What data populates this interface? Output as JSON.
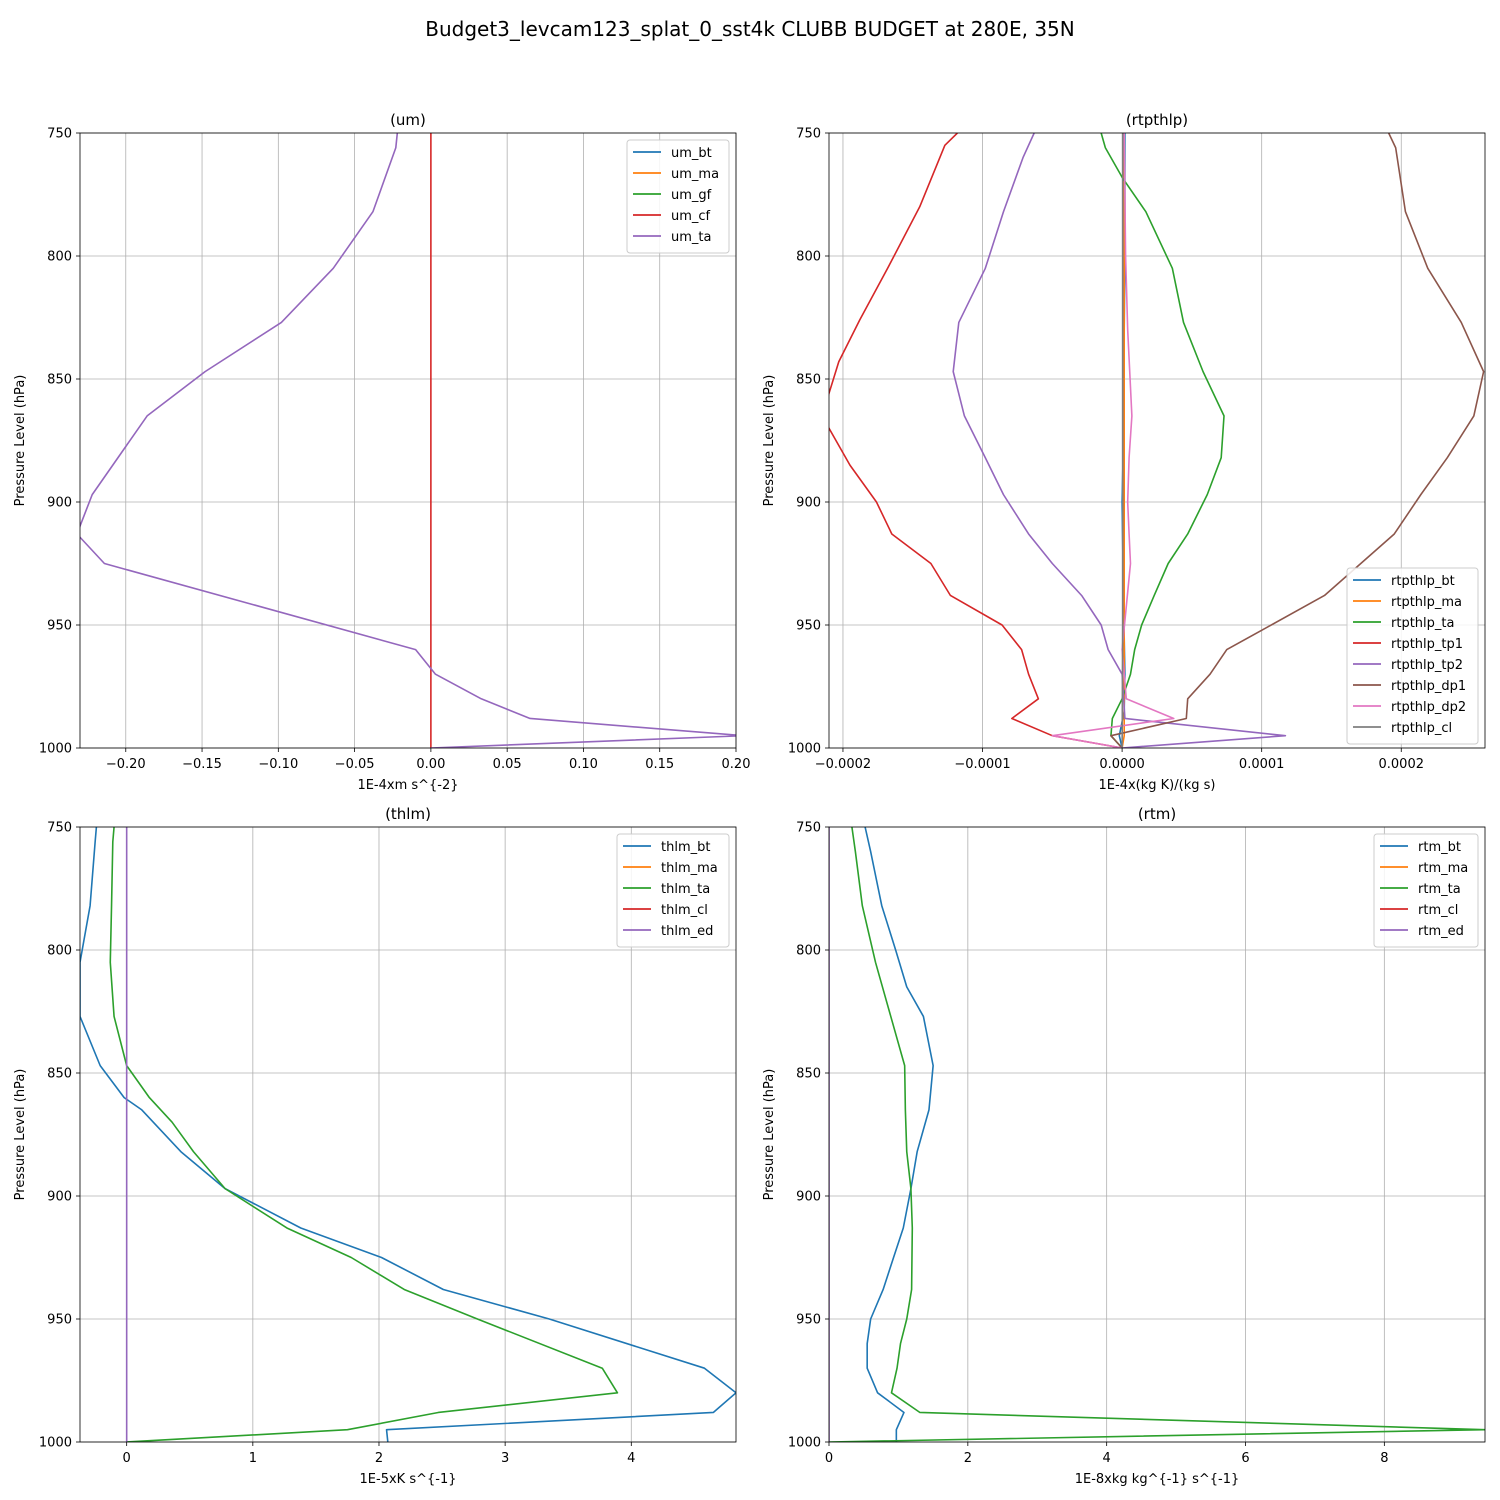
{
  "figure": {
    "title": "Budget3_levcam123_splat_0_sst4k CLUBB BUDGET at 280E, 35N"
  },
  "colors": {
    "C0": "#1f77b4",
    "C1": "#ff7f0e",
    "C2": "#2ca02c",
    "C3": "#d62728",
    "C4": "#9467bd",
    "C5": "#8c564b",
    "C6": "#e377c2",
    "C7": "#7f7f7f"
  },
  "chart_data": [
    {
      "type": "line",
      "title": "(um)",
      "xlabel": "1E-4xm s^{-2}",
      "ylabel": "Pressure Level (hPa)",
      "xlim": [
        -0.23,
        0.2
      ],
      "ylim": [
        1000,
        750
      ],
      "xticks": [
        -0.2,
        -0.15,
        -0.1,
        -0.05,
        0.0,
        0.05,
        0.1,
        0.15,
        0.2
      ],
      "xticklabels": [
        "−0.20",
        "−0.15",
        "−0.10",
        "−0.05",
        "0.00",
        "0.05",
        "0.10",
        "0.15",
        "0.20"
      ],
      "yticks": [
        750,
        800,
        850,
        900,
        950,
        1000
      ],
      "grid": true,
      "legend": "upper right",
      "series": [
        {
          "name": "um_bt",
          "color": "C0",
          "x": [],
          "y": []
        },
        {
          "name": "um_ma",
          "color": "C1",
          "x": [],
          "y": []
        },
        {
          "name": "um_gf",
          "color": "C2",
          "x": [],
          "y": []
        },
        {
          "name": "um_cf",
          "color": "C3",
          "x": [
            0,
            0
          ],
          "y": [
            750,
            1000
          ]
        },
        {
          "name": "um_ta",
          "color": "C4",
          "x": [
            -0.022,
            -0.023,
            -0.038,
            -0.064,
            -0.098,
            -0.148,
            -0.186,
            -0.222,
            -0.232,
            -0.214,
            -0.01,
            0.003,
            0.033,
            0.065,
            0.205,
            0.0
          ],
          "y": [
            750,
            756,
            782,
            805,
            827,
            847,
            865,
            897,
            913,
            925,
            960,
            970,
            980,
            988,
            995,
            1000
          ]
        }
      ]
    },
    {
      "type": "line",
      "title": "(rtpthlp)",
      "xlabel": "1E-4x(kg K)/(kg s)",
      "ylabel": "Pressure Level (hPa)",
      "xlim": [
        -0.00021,
        0.00026
      ],
      "ylim": [
        1000,
        750
      ],
      "xticks": [
        -0.0002,
        -0.0001,
        0.0,
        0.0001,
        0.0002
      ],
      "xticklabels": [
        "−0.0002",
        "−0.0001",
        "0.0000",
        "0.0001",
        "0.0002"
      ],
      "yticks": [
        750,
        800,
        850,
        900,
        950,
        1000
      ],
      "grid": true,
      "legend": "lower right",
      "series": [
        {
          "name": "rtpthlp_bt",
          "color": "C0",
          "x": [
            2e-06,
            2e-06,
            1.5e-06,
            1.5e-06,
            0.0,
            1e-06,
            2e-06,
            1.5e-06,
            -2e-06,
            0.0
          ],
          "y": [
            750,
            800,
            830,
            860,
            900,
            940,
            970,
            985,
            995,
            1000
          ]
        },
        {
          "name": "rtpthlp_ma",
          "color": "C1",
          "x": [
            1.5e-06,
            1.5e-06,
            1.5e-06,
            1.5e-06,
            1.5e-06,
            1.5e-06,
            1.5e-06,
            0.0
          ],
          "y": [
            750,
            800,
            850,
            900,
            950,
            980,
            995,
            1000
          ]
        },
        {
          "name": "rtpthlp_ta",
          "color": "C2",
          "x": [
            -1.5e-05,
            -1.2e-05,
            0.0,
            1.7e-05,
            3.6e-05,
            4.4e-05,
            5.8e-05,
            7.3e-05,
            7.1e-05,
            6.1e-05,
            4.7e-05,
            3.3e-05,
            2.3e-05,
            1.4e-05,
            9e-06,
            6e-06,
            0.0,
            -7e-06,
            -8e-06,
            0.0
          ],
          "y": [
            750,
            756,
            768,
            782,
            805,
            827,
            847,
            865,
            882,
            897,
            913,
            925,
            938,
            950,
            960,
            970,
            980,
            988,
            995,
            1000
          ]
        },
        {
          "name": "rtpthlp_tp1",
          "color": "C3",
          "x": [
            -0.000118,
            -0.000127,
            -0.000145,
            -0.000168,
            -0.000188,
            -0.000203,
            -0.000215,
            -0.000195,
            -0.000176,
            -0.000165,
            -0.000137,
            -0.000123,
            -8.6e-05,
            -7.2e-05,
            -6.7e-05,
            -6e-05,
            -7.9e-05,
            -5e-05,
            0.0
          ],
          "y": [
            750,
            755,
            780,
            805,
            826,
            843,
            865,
            885,
            900,
            913,
            925,
            938,
            950,
            960,
            970,
            980,
            988,
            995,
            1000
          ]
        },
        {
          "name": "rtpthlp_tp2",
          "color": "C4",
          "x": [
            -6.3e-05,
            -7.1e-05,
            -8.5e-05,
            -9.8e-05,
            -0.000117,
            -0.000121,
            -0.000113,
            -9.8e-05,
            -8.5e-05,
            -6.7e-05,
            -5e-05,
            -2.9e-05,
            -1.5e-05,
            -1e-05,
            0.0,
            2e-06,
            0.000117,
            0.0
          ],
          "y": [
            750,
            760,
            782,
            805,
            827,
            847,
            865,
            882,
            897,
            913,
            925,
            938,
            950,
            960,
            970,
            988,
            995,
            1000
          ]
        },
        {
          "name": "rtpthlp_dp1",
          "color": "C5",
          "x": [
            0.000191,
            0.000196,
            0.000203,
            0.000219,
            0.000243,
            0.000259,
            0.000252,
            0.000233,
            0.000214,
            0.000195,
            0.000145,
            7.5e-05,
            6.3e-05,
            4.7e-05,
            4.6e-05,
            -8e-06,
            0.0
          ],
          "y": [
            750,
            756,
            782,
            805,
            827,
            847,
            865,
            882,
            897,
            913,
            938,
            960,
            970,
            980,
            988,
            995,
            1000
          ]
        },
        {
          "name": "rtpthlp_dp2",
          "color": "C6",
          "x": [
            1.5e-06,
            2.5e-06,
            4e-06,
            7e-06,
            5e-06,
            4e-06,
            5e-06,
            6e-06,
            0.0,
            3e-06,
            3.7e-05,
            -5e-05,
            0.0
          ],
          "y": [
            750,
            800,
            830,
            865,
            882,
            900,
            913,
            925,
            960,
            980,
            988,
            995,
            1000
          ]
        },
        {
          "name": "rtpthlp_cl",
          "color": "C7",
          "x": [
            5e-07,
            5e-07,
            5e-07,
            5e-07,
            5e-07,
            0.0
          ],
          "y": [
            750,
            800,
            850,
            900,
            950,
            1000
          ]
        }
      ]
    },
    {
      "type": "line",
      "title": "(thlm)",
      "xlabel": "1E-5xK s^{-1}",
      "ylabel": "Pressure Level (hPa)",
      "xlim": [
        -0.37,
        4.83
      ],
      "ylim": [
        1000,
        750
      ],
      "xticks": [
        0,
        1,
        2,
        3,
        4
      ],
      "xticklabels": [
        "0",
        "1",
        "2",
        "3",
        "4"
      ],
      "yticks": [
        750,
        800,
        850,
        900,
        950,
        1000
      ],
      "grid": true,
      "legend": "upper right",
      "series": [
        {
          "name": "thlm_bt",
          "color": "C0",
          "x": [
            -0.24,
            -0.25,
            -0.29,
            -0.37,
            -0.37,
            -0.21,
            -0.02,
            0.12,
            0.43,
            0.78,
            1.38,
            2.02,
            2.51,
            3.35,
            4.58,
            4.83,
            4.65,
            2.06,
            2.07
          ],
          "y": [
            750,
            756,
            782,
            805,
            827,
            847,
            860,
            865,
            882,
            897,
            913,
            925,
            938,
            950,
            970,
            980,
            988,
            995,
            1000
          ]
        },
        {
          "name": "thlm_ma",
          "color": "C1",
          "x": [],
          "y": []
        },
        {
          "name": "thlm_ta",
          "color": "C2",
          "x": [
            -0.1,
            -0.11,
            -0.12,
            -0.13,
            -0.1,
            0.0,
            0.18,
            0.36,
            0.53,
            0.78,
            1.27,
            1.78,
            2.2,
            2.78,
            3.77,
            3.89,
            2.47,
            1.75,
            0.0
          ],
          "y": [
            750,
            756,
            782,
            805,
            827,
            847,
            860,
            870,
            882,
            897,
            913,
            925,
            938,
            950,
            970,
            980,
            988,
            995,
            1000
          ]
        },
        {
          "name": "thlm_cl",
          "color": "C3",
          "x": [],
          "y": []
        },
        {
          "name": "thlm_ed",
          "color": "C4",
          "x": [
            0,
            0
          ],
          "y": [
            750,
            1000
          ]
        }
      ]
    },
    {
      "type": "line",
      "title": "(rtm)",
      "xlabel": "1E-8xkg kg^{-1} s^{-1}",
      "ylabel": "Pressure Level (hPa)",
      "xlim": [
        0,
        9.45
      ],
      "ylim": [
        1000,
        750
      ],
      "xticks": [
        0,
        2,
        4,
        6,
        8
      ],
      "xticklabels": [
        "0",
        "2",
        "4",
        "6",
        "8"
      ],
      "yticks": [
        750,
        800,
        850,
        900,
        950,
        1000
      ],
      "grid": true,
      "legend": "upper right",
      "series": [
        {
          "name": "rtm_bt",
          "color": "C0",
          "x": [
            0.52,
            0.6,
            0.76,
            0.96,
            1.12,
            1.36,
            1.5,
            1.44,
            1.27,
            1.18,
            1.07,
            0.93,
            0.78,
            0.6,
            0.55,
            0.55,
            0.7,
            1.08,
            0.97,
            0.97
          ],
          "y": [
            750,
            760,
            782,
            800,
            815,
            827,
            847,
            865,
            882,
            897,
            913,
            925,
            938,
            950,
            960,
            970,
            980,
            988,
            995,
            1000
          ]
        },
        {
          "name": "rtm_ma",
          "color": "C1",
          "x": [],
          "y": []
        },
        {
          "name": "rtm_ta",
          "color": "C2",
          "x": [
            0.33,
            0.38,
            0.48,
            0.67,
            0.89,
            1.09,
            1.1,
            1.12,
            1.18,
            1.2,
            1.19,
            1.12,
            1.03,
            0.98,
            0.9,
            1.31,
            9.45,
            0.0
          ],
          "y": [
            750,
            760,
            782,
            805,
            827,
            847,
            865,
            882,
            897,
            913,
            938,
            950,
            960,
            970,
            980,
            988,
            995,
            1000
          ]
        },
        {
          "name": "rtm_cl",
          "color": "C3",
          "x": [],
          "y": []
        },
        {
          "name": "rtm_ed",
          "color": "C4",
          "x": [
            0.0,
            0.0
          ],
          "y": [
            750,
            1000
          ]
        }
      ]
    }
  ]
}
